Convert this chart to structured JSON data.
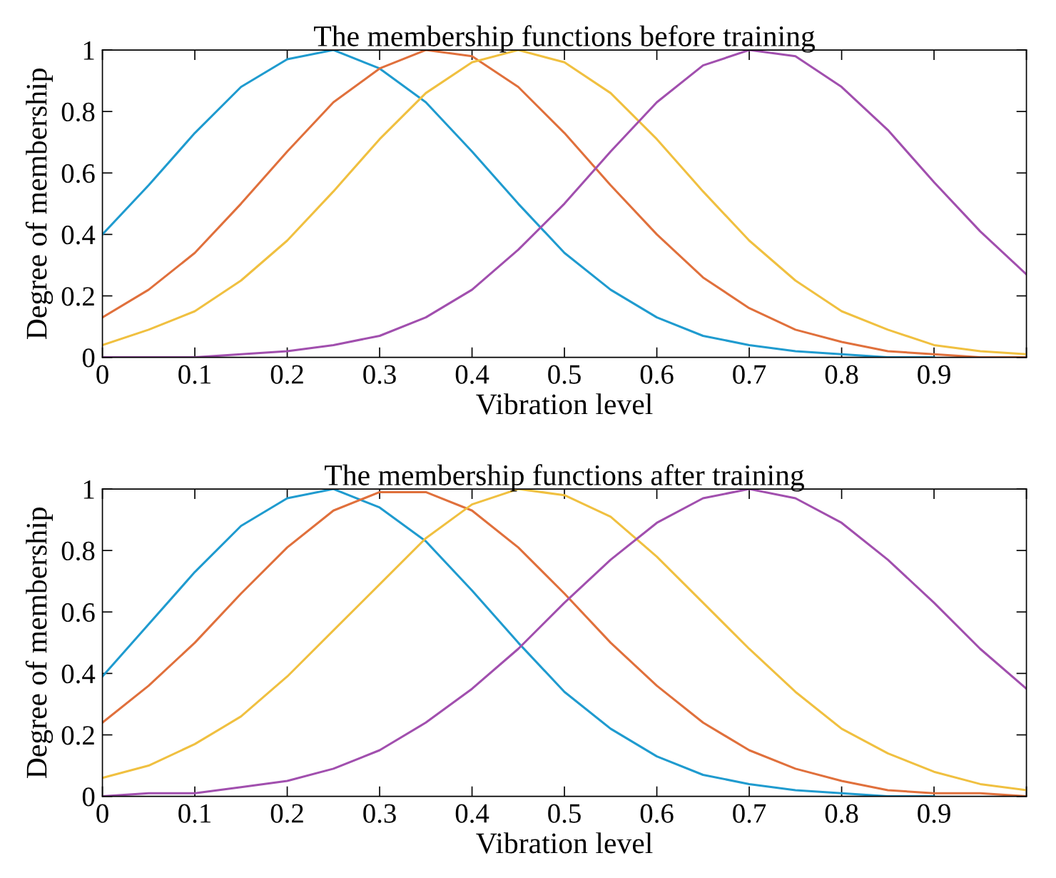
{
  "chart_data": [
    {
      "type": "line",
      "title": "The membership functions before training",
      "xlabel": "Vibration level",
      "ylabel": "Degree of membership",
      "x": [
        0,
        0.05,
        0.1,
        0.15,
        0.2,
        0.25,
        0.3,
        0.35,
        0.4,
        0.45,
        0.5,
        0.55,
        0.6,
        0.65,
        0.7,
        0.75,
        0.8,
        0.85,
        0.9,
        0.95,
        1
      ],
      "series": [
        {
          "color": "#1f9bcf",
          "values": [
            0.4,
            0.56,
            0.73,
            0.88,
            0.97,
            1.0,
            0.94,
            0.83,
            0.67,
            0.5,
            0.34,
            0.22,
            0.13,
            0.07,
            0.04,
            0.02,
            0.01,
            0.0,
            0.0,
            null,
            null
          ]
        },
        {
          "color": "#e0703c",
          "values": [
            0.13,
            0.22,
            0.34,
            0.5,
            0.67,
            0.83,
            0.94,
            1.0,
            0.98,
            0.88,
            0.73,
            0.56,
            0.4,
            0.26,
            0.16,
            0.09,
            0.05,
            0.02,
            0.01,
            0.0,
            0.0
          ]
        },
        {
          "color": "#f0c040",
          "values": [
            0.04,
            0.09,
            0.15,
            0.25,
            0.38,
            0.54,
            0.71,
            0.86,
            0.96,
            1.0,
            0.96,
            0.86,
            0.71,
            0.54,
            0.38,
            0.25,
            0.15,
            0.09,
            0.04,
            0.02,
            0.01
          ]
        },
        {
          "color": "#a14fae",
          "values": [
            0.0,
            0.0,
            0.0,
            0.01,
            0.02,
            0.04,
            0.07,
            0.13,
            0.22,
            0.35,
            0.5,
            0.67,
            0.83,
            0.95,
            1.0,
            0.98,
            0.88,
            0.74,
            0.57,
            0.41,
            0.27
          ]
        }
      ],
      "xlim": [
        0,
        1
      ],
      "ylim": [
        0,
        1
      ],
      "xticks": [
        0,
        0.1,
        0.2,
        0.3,
        0.4,
        0.5,
        0.6,
        0.7,
        0.8,
        0.9,
        {
          "value": 1,
          "label": null
        }
      ],
      "yticks": [
        0,
        0.2,
        0.4,
        0.6,
        0.8,
        1
      ],
      "grid": false,
      "legend": false
    },
    {
      "type": "line",
      "title": "The membership functions after training",
      "xlabel": "Vibration level",
      "ylabel": "Degree of membership",
      "x": [
        0,
        0.05,
        0.1,
        0.15,
        0.2,
        0.25,
        0.3,
        0.35,
        0.4,
        0.45,
        0.5,
        0.55,
        0.6,
        0.65,
        0.7,
        0.75,
        0.8,
        0.85,
        0.9,
        0.95,
        1
      ],
      "series": [
        {
          "color": "#1f9bcf",
          "values": [
            0.39,
            0.56,
            0.73,
            0.88,
            0.97,
            1.0,
            0.94,
            0.83,
            0.67,
            0.5,
            0.34,
            0.22,
            0.13,
            0.07,
            0.04,
            0.02,
            0.01,
            0.0,
            0.0,
            null,
            null
          ]
        },
        {
          "color": "#e0703c",
          "values": [
            0.24,
            0.36,
            0.5,
            0.66,
            0.81,
            0.93,
            0.99,
            0.99,
            0.93,
            0.81,
            0.66,
            0.5,
            0.36,
            0.24,
            0.15,
            0.09,
            0.05,
            0.02,
            0.01,
            0.01,
            0.0
          ]
        },
        {
          "color": "#f0c040",
          "values": [
            0.06,
            0.1,
            0.17,
            0.26,
            0.39,
            0.54,
            0.69,
            0.84,
            0.95,
            1.0,
            0.98,
            0.91,
            0.78,
            0.63,
            0.48,
            0.34,
            0.22,
            0.14,
            0.08,
            0.04,
            0.02
          ]
        },
        {
          "color": "#a14fae",
          "values": [
            0.0,
            0.01,
            0.01,
            0.03,
            0.05,
            0.09,
            0.15,
            0.24,
            0.35,
            0.48,
            0.63,
            0.77,
            0.89,
            0.97,
            1.0,
            0.97,
            0.89,
            0.77,
            0.63,
            0.48,
            0.35
          ]
        }
      ],
      "xlim": [
        0,
        1
      ],
      "ylim": [
        0,
        1
      ],
      "xticks": [
        0,
        0.1,
        0.2,
        0.3,
        0.4,
        0.5,
        0.6,
        0.7,
        0.8,
        0.9,
        {
          "value": 1,
          "label": null
        }
      ],
      "yticks": [
        0,
        0.2,
        0.4,
        0.6,
        0.8,
        1
      ],
      "grid": false,
      "legend": false
    }
  ]
}
